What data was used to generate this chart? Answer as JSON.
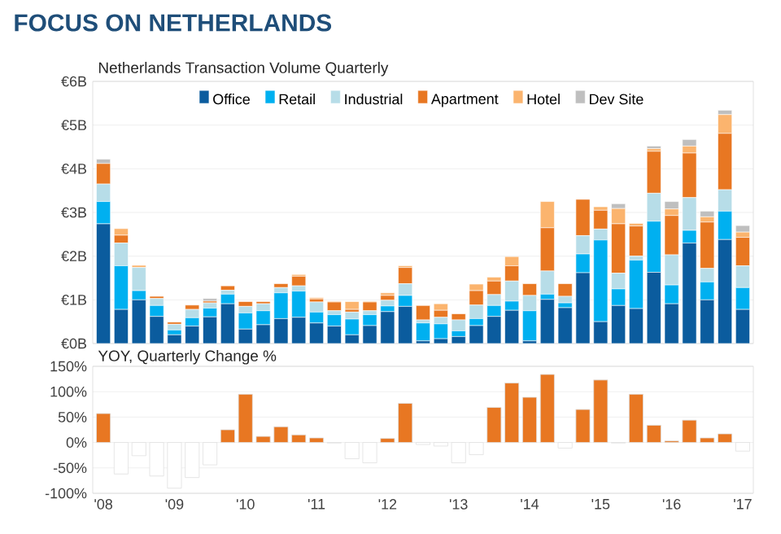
{
  "chart_data": [
    {
      "type": "bar",
      "stacked": true,
      "title": "FOCUS ON NETHERLANDS",
      "subtitle": "Netherlands Transaction Volume Quarterly",
      "categories": [
        null,
        null,
        null,
        null,
        null,
        null,
        null,
        null,
        null,
        null,
        null,
        null,
        null,
        null,
        null,
        null,
        null,
        null,
        null,
        null,
        null,
        null,
        null,
        null,
        null,
        null,
        null,
        null,
        null,
        null,
        null,
        null,
        null,
        null,
        null,
        null,
        null
      ],
      "series": [
        {
          "name": "Office",
          "color": "#0b5c9e",
          "values": [
            2.74,
            0.78,
            1.0,
            0.62,
            0.2,
            0.4,
            0.61,
            0.91,
            0.33,
            0.43,
            0.57,
            0.6,
            0.47,
            0.4,
            0.2,
            0.41,
            0.73,
            0.85,
            0.06,
            0.11,
            0.16,
            0.41,
            0.62,
            0.76,
            0.06,
            1.01,
            0.82,
            1.62,
            0.5,
            0.87,
            0.8,
            1.63,
            0.91,
            2.3,
            1.0,
            2.38,
            0.78
          ]
        },
        {
          "name": "Retail",
          "color": "#00b0f0",
          "values": [
            0.51,
            1.0,
            0.21,
            0.25,
            0.11,
            0.19,
            0.2,
            0.22,
            0.37,
            0.32,
            0.59,
            0.6,
            0.25,
            0.26,
            0.36,
            0.25,
            0.13,
            0.25,
            0.41,
            0.34,
            0.13,
            0.16,
            0.25,
            0.21,
            0.69,
            0.12,
            0.11,
            0.43,
            1.87,
            0.38,
            1.11,
            1.17,
            0.43,
            0.29,
            0.41,
            0.65,
            0.5
          ]
        },
        {
          "name": "Industrial",
          "color": "#b7dde8",
          "values": [
            0.4,
            0.52,
            0.53,
            0.16,
            0.13,
            0.19,
            0.12,
            0.09,
            0.15,
            0.16,
            0.12,
            0.12,
            0.23,
            0.09,
            0.16,
            0.09,
            0.13,
            0.27,
            0.07,
            0.15,
            0.25,
            0.31,
            0.25,
            0.46,
            0.35,
            0.53,
            0.15,
            0.42,
            0.25,
            0.36,
            0.09,
            0.64,
            0.69,
            0.75,
            0.31,
            0.49,
            0.5
          ]
        },
        {
          "name": "Apartment",
          "color": "#e87722",
          "values": [
            0.47,
            0.18,
            0,
            0.05,
            0.05,
            0.1,
            0.04,
            0.1,
            0.11,
            0.05,
            0.09,
            0.22,
            0.07,
            0.2,
            0.06,
            0.2,
            0.11,
            0.37,
            0.33,
            0.16,
            0.14,
            0.33,
            0.31,
            0.35,
            0.27,
            0.99,
            0.29,
            0.83,
            0.43,
            1.13,
            0.69,
            0.96,
            0.9,
            1.02,
            1.06,
            1.29,
            0.65
          ]
        },
        {
          "name": "Hotel",
          "color": "#fbb46e",
          "values": [
            null,
            0.15,
            0.05,
            0,
            0,
            0,
            0,
            0,
            0,
            null,
            null,
            0.04,
            0.03,
            0.02,
            0.18,
            0.02,
            0.06,
            0.04,
            0,
            0.15,
            0,
            0.15,
            0.09,
            0.21,
            0,
            0.6,
            0,
            null,
            0.08,
            0.35,
            0.06,
            0.06,
            0.15,
            0.16,
            0.12,
            0.43,
            0.12
          ]
        },
        {
          "name": "Dev Site",
          "color": "#bfbfbf",
          "values": [
            0.1,
            0,
            0,
            0,
            0,
            0,
            0.06,
            0,
            0,
            0,
            0,
            0,
            0,
            0,
            0,
            0,
            0,
            0,
            0,
            0,
            0,
            0,
            0,
            0,
            0,
            0,
            0,
            0,
            0,
            0.11,
            0,
            0.06,
            0.17,
            0.15,
            0.13,
            0.1,
            0.15
          ]
        }
      ],
      "ylim": [
        0,
        6
      ],
      "yticks": [
        {
          "value": 0,
          "label": "€0B"
        },
        {
          "value": 1,
          "label": "€1B"
        },
        {
          "value": 2,
          "label": "€2B"
        },
        {
          "value": 3,
          "label": "€3B"
        },
        {
          "value": 4,
          "label": "€4B"
        },
        {
          "value": 5,
          "label": "€5B"
        },
        {
          "value": 6,
          "label": "€6B"
        }
      ],
      "grid": "y",
      "legend": "top"
    },
    {
      "type": "bar",
      "title": "YOY, Quarterly Change %",
      "categories": [
        "'08",
        null,
        null,
        null,
        "'09",
        null,
        null,
        null,
        "'10",
        null,
        null,
        null,
        "'11",
        null,
        null,
        null,
        "'12",
        null,
        null,
        null,
        "'13",
        null,
        null,
        null,
        "'14",
        null,
        null,
        null,
        "'15",
        null,
        null,
        null,
        "'16",
        null,
        null,
        null,
        "'17"
      ],
      "values": [
        57,
        -62,
        -26,
        -66,
        -90,
        -69,
        -44,
        25,
        95,
        12,
        31,
        15,
        9,
        -1,
        -32,
        -40,
        8,
        77,
        -4,
        -7,
        -40,
        -24,
        69,
        117,
        89,
        134,
        -11,
        65,
        123,
        -1,
        95,
        34,
        3,
        44,
        9,
        17,
        -17
      ],
      "colors": [
        "#e87722",
        "#ffffff",
        "#ffffff",
        "#ffffff",
        "#ffffff",
        "#ffffff",
        "#ffffff",
        "#e87722",
        "#e87722",
        "#e87722",
        "#e87722",
        "#e87722",
        "#e87722",
        "#ffffff",
        "#ffffff",
        "#ffffff",
        "#e87722",
        "#e87722",
        "#ffffff",
        "#ffffff",
        "#ffffff",
        "#ffffff",
        "#e87722",
        "#e87722",
        "#e87722",
        "#e87722",
        "#ffffff",
        "#e87722",
        "#e87722",
        "#ffffff",
        "#e87722",
        "#e87722",
        "#e87722",
        "#e87722",
        "#e87722",
        "#e87722",
        "#ffffff"
      ],
      "ylim": [
        -100,
        150
      ],
      "yticks": [
        {
          "value": -100,
          "label": "-100%"
        },
        {
          "value": -50,
          "label": "-50%"
        },
        {
          "value": 0,
          "label": "0%"
        },
        {
          "value": 50,
          "label": "50%"
        },
        {
          "value": 100,
          "label": "100%"
        },
        {
          "value": 150,
          "label": "150%"
        }
      ],
      "grid": "y"
    }
  ]
}
